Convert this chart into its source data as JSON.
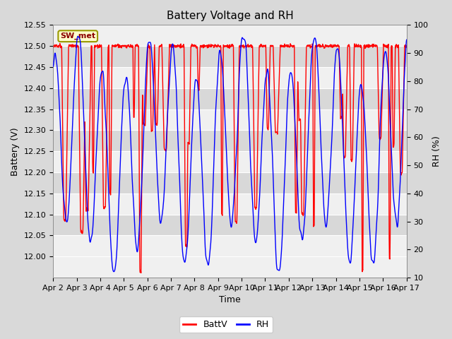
{
  "title": "Battery Voltage and RH",
  "xlabel": "Time",
  "ylabel_left": "Battery (V)",
  "ylabel_right": "RH (%)",
  "legend_label": "SW_met",
  "series_labels": [
    "BattV",
    "RH"
  ],
  "series_colors": [
    "red",
    "blue"
  ],
  "ylim_left": [
    11.95,
    12.55
  ],
  "ylim_right": [
    10,
    100
  ],
  "yticks_left": [
    12.0,
    12.05,
    12.1,
    12.15,
    12.2,
    12.25,
    12.3,
    12.35,
    12.4,
    12.45,
    12.5,
    12.55
  ],
  "yticks_right": [
    10,
    20,
    30,
    40,
    50,
    60,
    70,
    80,
    90,
    100
  ],
  "xtick_labels": [
    "Apr 2",
    "Apr 3",
    "Apr 4",
    "Apr 5",
    "Apr 6",
    "Apr 7",
    "Apr 8",
    "Apr 9",
    "Apr 10",
    "Apr 11",
    "Apr 12",
    "Apr 13",
    "Apr 14",
    "Apr 15",
    "Apr 16",
    "Apr 17"
  ],
  "background_color": "#d9d9d9",
  "inner_bg_light": "#f0f0f0",
  "inner_bg_dark": "#d8d8d8",
  "grid_color": "#c0c0c0",
  "legend_box_facecolor": "#ffffcc",
  "legend_box_edgecolor": "#999900",
  "title_fontsize": 11,
  "axis_label_fontsize": 9,
  "tick_fontsize": 8,
  "linewidth": 1.0,
  "n_days": 15,
  "pts_per_day": 96
}
